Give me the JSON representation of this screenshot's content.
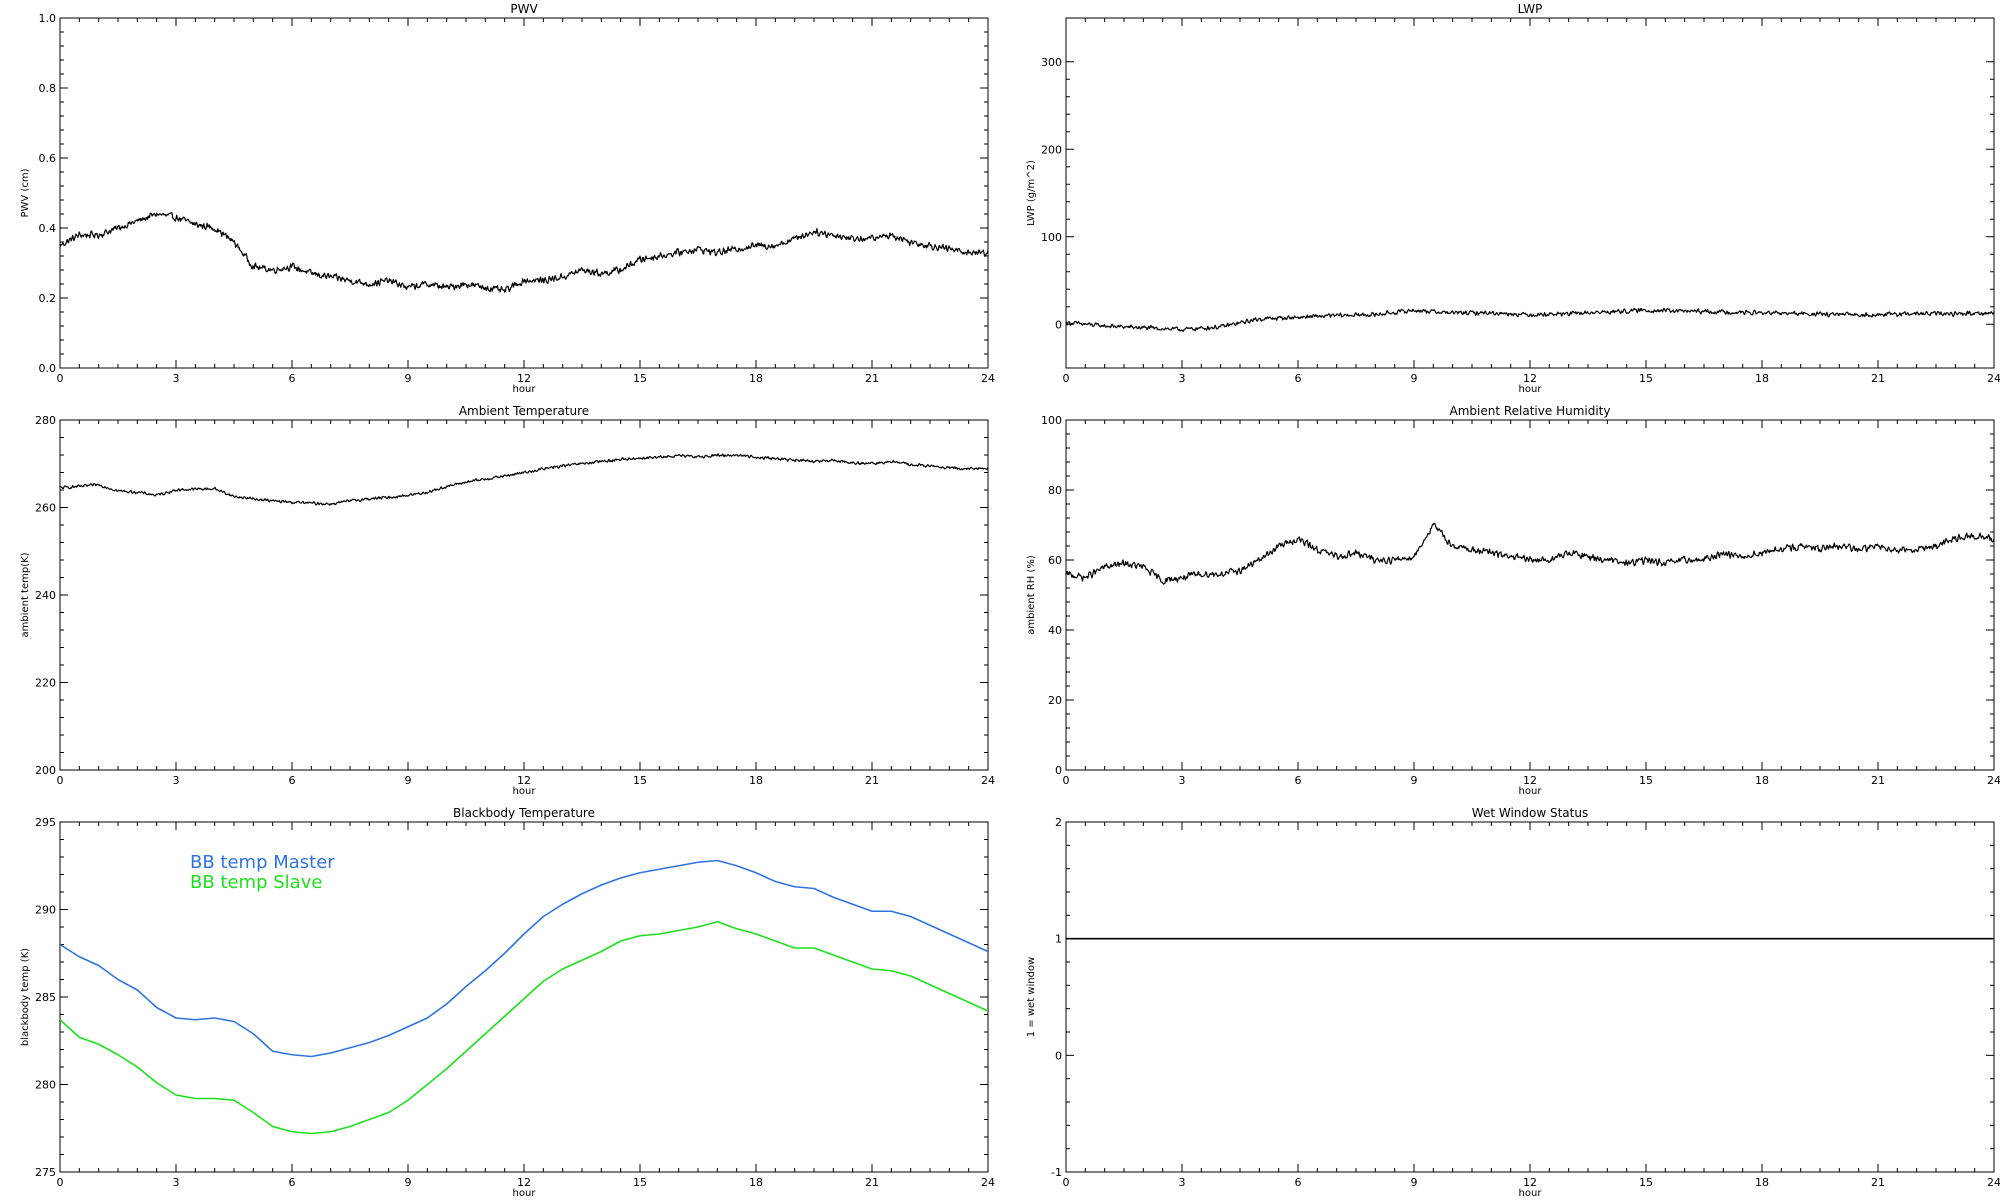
{
  "chart_data": [
    {
      "type": "line",
      "title": "PWV",
      "xlabel": "hour",
      "ylabel": "PWV (cm)",
      "xlim": [
        0,
        24
      ],
      "ylim": [
        0,
        1
      ],
      "xticks": [
        0,
        3,
        6,
        9,
        12,
        15,
        18,
        21,
        24
      ],
      "xtick_labels": [
        "0",
        "3",
        "6",
        "9",
        "12",
        "15",
        "18",
        "21",
        "24"
      ],
      "yticks": [
        0,
        0.2,
        0.4,
        0.6,
        0.8,
        1.0
      ],
      "ytick_labels": [
        "0.0",
        "0.2",
        "0.4",
        "0.6",
        "0.8",
        "1.0"
      ],
      "noise": 0.012,
      "series": [
        {
          "name": "",
          "color": "#000000",
          "x": [
            0,
            0.5,
            1,
            1.5,
            2,
            2.5,
            3,
            3.5,
            4,
            4.5,
            5,
            5.5,
            6,
            6.5,
            7,
            7.5,
            8,
            8.5,
            9,
            9.5,
            10,
            10.5,
            11,
            11.5,
            12,
            12.5,
            13,
            13.5,
            14,
            14.5,
            15,
            15.5,
            16,
            16.5,
            17,
            17.5,
            18,
            18.5,
            19,
            19.5,
            20,
            20.5,
            21,
            21.5,
            22,
            22.5,
            23,
            23.5,
            24
          ],
          "y": [
            0.35,
            0.38,
            0.38,
            0.4,
            0.42,
            0.44,
            0.43,
            0.41,
            0.4,
            0.36,
            0.29,
            0.28,
            0.29,
            0.27,
            0.26,
            0.25,
            0.24,
            0.25,
            0.23,
            0.24,
            0.23,
            0.24,
            0.23,
            0.22,
            0.25,
            0.25,
            0.26,
            0.28,
            0.27,
            0.28,
            0.31,
            0.32,
            0.33,
            0.34,
            0.33,
            0.34,
            0.35,
            0.35,
            0.37,
            0.39,
            0.38,
            0.37,
            0.37,
            0.38,
            0.36,
            0.35,
            0.34,
            0.33,
            0.33
          ]
        }
      ]
    },
    {
      "type": "line",
      "title": "LWP",
      "xlabel": "hour",
      "ylabel": "LWP (g/m^2)",
      "xlim": [
        0,
        24
      ],
      "ylim": [
        -50,
        350
      ],
      "xticks": [
        0,
        3,
        6,
        9,
        12,
        15,
        18,
        21,
        24
      ],
      "xtick_labels": [
        "0",
        "3",
        "6",
        "9",
        "12",
        "15",
        "18",
        "21",
        "24"
      ],
      "yticks": [
        0,
        100,
        200,
        300
      ],
      "ytick_labels": [
        "0",
        "100",
        "200",
        "300"
      ],
      "noise": 3,
      "series": [
        {
          "name": "",
          "color": "#000000",
          "x": [
            0,
            1,
            2,
            3,
            4,
            5,
            6,
            7,
            8,
            9,
            10,
            11,
            12,
            13,
            14,
            15,
            16,
            17,
            18,
            19,
            20,
            21,
            22,
            23,
            24
          ],
          "y": [
            2,
            -2,
            -4,
            -6,
            -3,
            6,
            8,
            10,
            11,
            16,
            13,
            13,
            11,
            12,
            14,
            16,
            15,
            14,
            13,
            12,
            11,
            11,
            12,
            12,
            13
          ]
        }
      ]
    },
    {
      "type": "line",
      "title": "Ambient Temperature",
      "xlabel": "hour",
      "ylabel": "ambient temp(K)",
      "xlim": [
        0,
        24
      ],
      "ylim": [
        200,
        280
      ],
      "xticks": [
        0,
        3,
        6,
        9,
        12,
        15,
        18,
        21,
        24
      ],
      "xtick_labels": [
        "0",
        "3",
        "6",
        "9",
        "12",
        "15",
        "18",
        "21",
        "24"
      ],
      "yticks": [
        200,
        220,
        240,
        260,
        280
      ],
      "ytick_labels": [
        "200",
        "220",
        "240",
        "260",
        "280"
      ],
      "noise": 0.4,
      "series": [
        {
          "name": "",
          "color": "#000000",
          "x": [
            0,
            0.5,
            1,
            1.5,
            2,
            2.5,
            3,
            3.5,
            4,
            4.5,
            5,
            5.5,
            6,
            6.5,
            7,
            7.5,
            8,
            8.5,
            9,
            9.5,
            10,
            10.5,
            11,
            11.5,
            12,
            12.5,
            13,
            13.5,
            14,
            14.5,
            15,
            15.5,
            16,
            16.5,
            17,
            17.5,
            18,
            18.5,
            19,
            19.5,
            20,
            20.5,
            21,
            21.5,
            22,
            22.5,
            23,
            23.5,
            24
          ],
          "y": [
            264.5,
            264.8,
            265.2,
            263.8,
            263.5,
            262.8,
            264.0,
            264.2,
            264.3,
            262.5,
            262.0,
            261.5,
            261.2,
            261.0,
            260.8,
            261.5,
            262.0,
            262.3,
            262.8,
            263.5,
            264.8,
            265.8,
            266.5,
            267.2,
            268.0,
            268.8,
            269.5,
            270.0,
            270.5,
            271.0,
            271.3,
            271.5,
            271.8,
            271.6,
            271.9,
            272.0,
            271.5,
            271.2,
            270.8,
            270.5,
            270.8,
            270.2,
            270.0,
            270.5,
            269.8,
            269.5,
            269.0,
            268.8,
            269.0
          ]
        }
      ]
    },
    {
      "type": "line",
      "title": "Ambient Relative Humidity",
      "xlabel": "hour",
      "ylabel": "ambient RH (%)",
      "xlim": [
        0,
        24
      ],
      "ylim": [
        0,
        100
      ],
      "xticks": [
        0,
        3,
        6,
        9,
        12,
        15,
        18,
        21,
        24
      ],
      "xtick_labels": [
        "0",
        "3",
        "6",
        "9",
        "12",
        "15",
        "18",
        "21",
        "24"
      ],
      "yticks": [
        0,
        20,
        40,
        60,
        80,
        100
      ],
      "ytick_labels": [
        "0",
        "20",
        "40",
        "60",
        "80",
        "100"
      ],
      "noise": 1.2,
      "series": [
        {
          "name": "",
          "color": "#000000",
          "x": [
            0,
            0.5,
            1,
            1.5,
            2,
            2.5,
            3,
            3.5,
            4,
            4.5,
            5,
            5.5,
            6,
            6.5,
            7,
            7.5,
            8,
            8.5,
            9,
            9.5,
            10,
            10.5,
            11,
            11.5,
            12,
            12.5,
            13,
            13.5,
            14,
            14.5,
            15,
            15.5,
            16,
            16.5,
            17,
            17.5,
            18,
            18.5,
            19,
            19.5,
            20,
            20.5,
            21,
            21.5,
            22,
            22.5,
            23,
            23.5,
            24
          ],
          "y": [
            56,
            55,
            58,
            59,
            58,
            54,
            55,
            56,
            56,
            57,
            60,
            64,
            66,
            63,
            61,
            62,
            60,
            60,
            61,
            70,
            64,
            63,
            62,
            61,
            60,
            60,
            62,
            61,
            60,
            59,
            60,
            59,
            60,
            60,
            62,
            61,
            62,
            63,
            64,
            63,
            64,
            63,
            64,
            63,
            63,
            64,
            66,
            67,
            66
          ]
        }
      ]
    },
    {
      "type": "line",
      "title": "Blackbody Temperature",
      "xlabel": "hour",
      "ylabel": "blackbody temp (K)",
      "xlim": [
        0,
        24
      ],
      "ylim": [
        275,
        295
      ],
      "xticks": [
        0,
        3,
        6,
        9,
        12,
        15,
        18,
        21,
        24
      ],
      "xtick_labels": [
        "0",
        "3",
        "6",
        "9",
        "12",
        "15",
        "18",
        "21",
        "24"
      ],
      "yticks": [
        275,
        280,
        285,
        290,
        295
      ],
      "ytick_labels": [
        "275",
        "280",
        "285",
        "290",
        "295"
      ],
      "noise": 0,
      "legend": "top-left",
      "series": [
        {
          "name": "BB temp Master",
          "color": "#2f73e0",
          "x": [
            0,
            0.5,
            1,
            1.5,
            2,
            2.5,
            3,
            3.5,
            4,
            4.5,
            5,
            5.5,
            6,
            6.5,
            7,
            7.5,
            8,
            8.5,
            9,
            9.5,
            10,
            10.5,
            11,
            11.5,
            12,
            12.5,
            13,
            13.5,
            14,
            14.5,
            15,
            15.5,
            16,
            16.5,
            17,
            17.5,
            18,
            18.5,
            19,
            19.5,
            20,
            20.5,
            21,
            21.5,
            22,
            22.5,
            23,
            23.5,
            24
          ],
          "y": [
            288.0,
            287.3,
            286.8,
            286.0,
            285.4,
            284.4,
            283.8,
            283.7,
            283.8,
            283.6,
            282.9,
            281.9,
            281.7,
            281.6,
            281.8,
            282.1,
            282.4,
            282.8,
            283.3,
            283.8,
            284.6,
            285.6,
            286.5,
            287.5,
            288.6,
            289.6,
            290.3,
            290.9,
            291.4,
            291.8,
            292.1,
            292.3,
            292.5,
            292.7,
            292.8,
            292.5,
            292.1,
            291.6,
            291.3,
            291.2,
            290.7,
            290.3,
            289.9,
            289.9,
            289.6,
            289.1,
            288.6,
            288.1,
            287.6
          ]
        },
        {
          "name": "BB temp Slave",
          "color": "#1de01d",
          "x": [
            0,
            0.5,
            1,
            1.5,
            2,
            2.5,
            3,
            3.5,
            4,
            4.5,
            5,
            5.5,
            6,
            6.5,
            7,
            7.5,
            8,
            8.5,
            9,
            9.5,
            10,
            10.5,
            11,
            11.5,
            12,
            12.5,
            13,
            13.5,
            14,
            14.5,
            15,
            15.5,
            16,
            16.5,
            17,
            17.5,
            18,
            18.5,
            19,
            19.5,
            20,
            20.5,
            21,
            21.5,
            22,
            22.5,
            23,
            23.5,
            24
          ],
          "y": [
            283.7,
            282.7,
            282.3,
            281.7,
            281.0,
            280.1,
            279.4,
            279.2,
            279.2,
            279.1,
            278.4,
            277.6,
            277.3,
            277.2,
            277.3,
            277.6,
            278.0,
            278.4,
            279.1,
            280.0,
            280.9,
            281.9,
            282.9,
            283.9,
            284.9,
            285.9,
            286.6,
            287.1,
            287.6,
            288.2,
            288.5,
            288.6,
            288.8,
            289.0,
            289.3,
            288.9,
            288.6,
            288.2,
            287.8,
            287.8,
            287.4,
            287.0,
            286.6,
            286.5,
            286.2,
            285.7,
            285.2,
            284.7,
            284.2
          ]
        }
      ]
    },
    {
      "type": "line",
      "title": "Wet Window Status",
      "xlabel": "hour",
      "ylabel": "1 = wet window",
      "xlim": [
        0,
        24
      ],
      "ylim": [
        -1,
        2
      ],
      "xticks": [
        0,
        3,
        6,
        9,
        12,
        15,
        18,
        21,
        24
      ],
      "xtick_labels": [
        "0",
        "3",
        "6",
        "9",
        "12",
        "15",
        "18",
        "21",
        "24"
      ],
      "yticks": [
        -1,
        0,
        1,
        2
      ],
      "ytick_labels": [
        "-1",
        "0",
        "1",
        "2"
      ],
      "noise": 0,
      "series": [
        {
          "name": "",
          "color": "#000000",
          "x": [
            0,
            24
          ],
          "y": [
            1,
            1
          ]
        }
      ]
    }
  ]
}
